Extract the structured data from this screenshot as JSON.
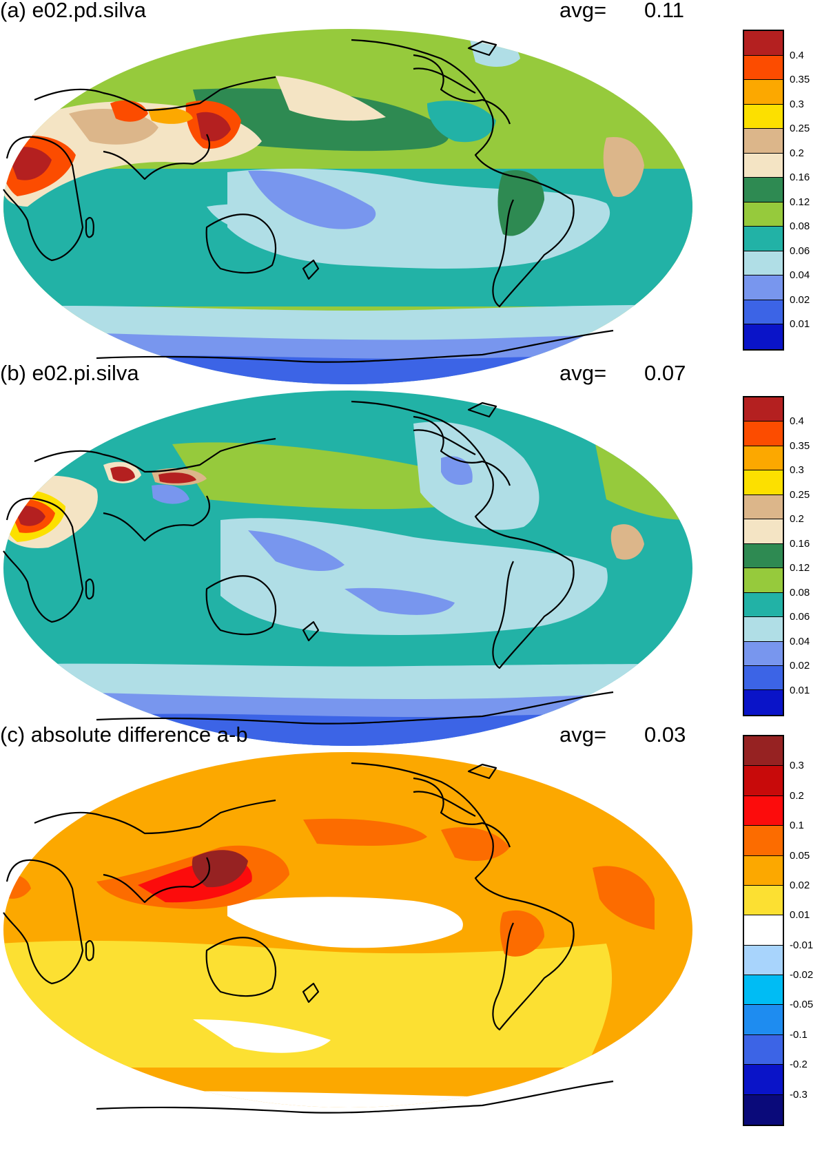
{
  "panels": [
    {
      "title": "(a) e02.pd.silva",
      "avg_label": "avg=",
      "avg_value": "0.11",
      "colorbar": {
        "colors": [
          "#0a14c8",
          "#3c64e6",
          "#7896ee",
          "#b0dee6",
          "#22b2a6",
          "#96ca3c",
          "#2e8a52",
          "#f4e4c4",
          "#dcb68a",
          "#fce000",
          "#fca800",
          "#fc4c00",
          "#b42020"
        ],
        "labels": [
          "0.01",
          "0.02",
          "0.04",
          "0.06",
          "0.08",
          "0.12",
          "0.16",
          "0.2",
          "0.25",
          "0.3",
          "0.35",
          "0.4"
        ]
      }
    },
    {
      "title": "(b) e02.pi.silva",
      "avg_label": "avg=",
      "avg_value": "0.07",
      "colorbar": {
        "colors": [
          "#0a14c8",
          "#3c64e6",
          "#7896ee",
          "#b0dee6",
          "#22b2a6",
          "#96ca3c",
          "#2e8a52",
          "#f4e4c4",
          "#dcb68a",
          "#fce000",
          "#fca800",
          "#fc4c00",
          "#b42020"
        ],
        "labels": [
          "0.01",
          "0.02",
          "0.04",
          "0.06",
          "0.08",
          "0.12",
          "0.16",
          "0.2",
          "0.25",
          "0.3",
          "0.35",
          "0.4"
        ]
      }
    },
    {
      "title": "(c) absolute difference a-b",
      "avg_label": "avg=",
      "avg_value": "0.03",
      "colorbar": {
        "colors": [
          "#0a0a7a",
          "#0a14c8",
          "#3c64e6",
          "#1e8cf0",
          "#00bcf4",
          "#a8d4fc",
          "#ffffff",
          "#fce032",
          "#fca800",
          "#fc6c00",
          "#fc0c0c",
          "#c80a0a",
          "#962222"
        ],
        "labels": [
          "-0.3",
          "-0.2",
          "-0.1",
          "-0.05",
          "-0.02",
          "-0.01",
          "0.01",
          "0.02",
          "0.05",
          "0.1",
          "0.2",
          "0.3"
        ]
      }
    }
  ]
}
